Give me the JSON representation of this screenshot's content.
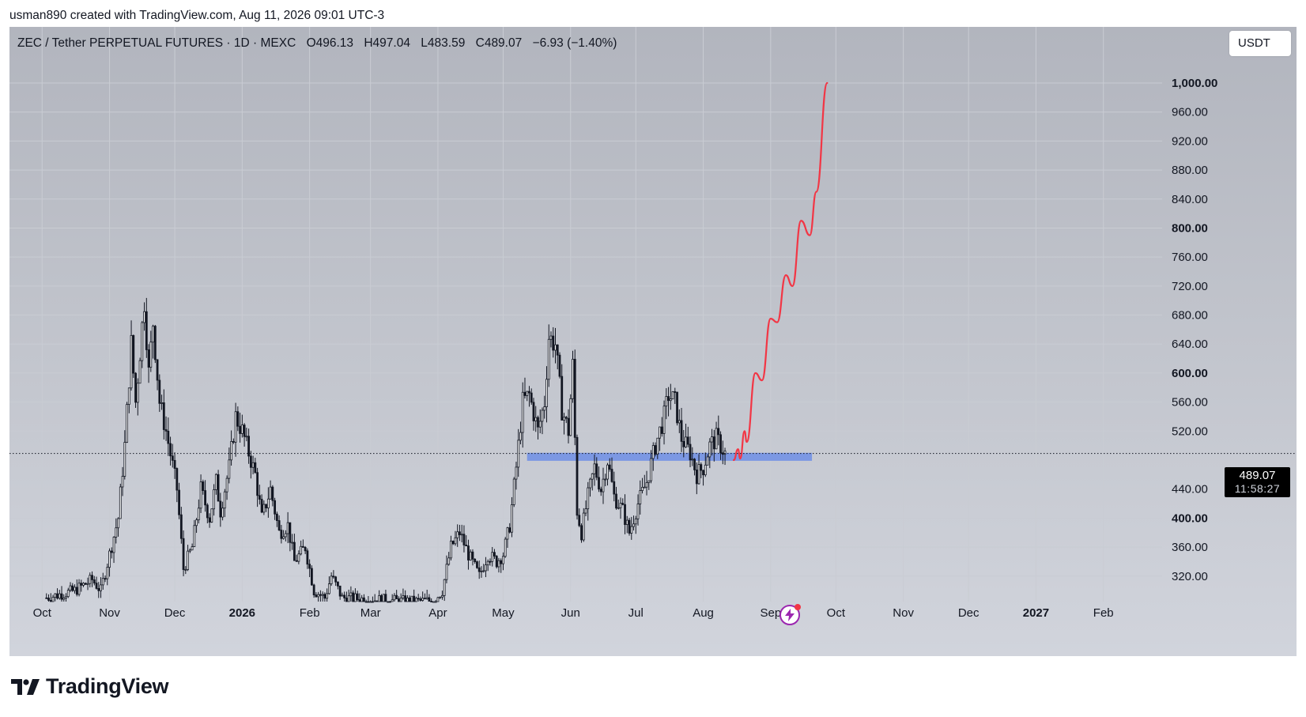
{
  "header": {
    "caption": "usman890 created with TradingView.com, Aug 11, 2026 09:01 UTC-3"
  },
  "legend": {
    "symbol": "ZEC / Tether PERPETUAL FUTURES · 1D · MEXC",
    "open": "O496.13",
    "high": "H497.04",
    "low": "L483.59",
    "close": "C489.07",
    "change": "−6.93 (−1.40%)"
  },
  "currency_button": "USDT",
  "price_tag": {
    "price": "489.07",
    "countdown": "11:58:27"
  },
  "brand": {
    "name": "TradingView",
    "logo_icon": "tradingview-logo-icon"
  },
  "colors": {
    "candle": "#131722",
    "projection": "#f23645",
    "support_zone": "#6f8fe6",
    "grid": "#c9ccd3"
  },
  "chart_data": {
    "type": "candlestick",
    "x_axis": {
      "labels": [
        "Oct",
        "Nov",
        "Dec",
        "2026",
        "Feb",
        "Mar",
        "Apr",
        "May",
        "Jun",
        "Jul",
        "Aug",
        "Sep",
        "Oct",
        "Nov",
        "Dec",
        "2027",
        "Feb"
      ],
      "bold_labels": [
        "2026",
        "2027"
      ]
    },
    "y_axis": {
      "unit": "USDT",
      "ticks": [
        1000,
        960,
        920,
        880,
        840,
        800,
        760,
        720,
        680,
        640,
        600,
        560,
        520,
        440,
        400,
        360,
        320
      ],
      "tick_labels": [
        "1,000.00",
        "960.00",
        "920.00",
        "880.00",
        "840.00",
        "800.00",
        "760.00",
        "720.00",
        "680.00",
        "640.00",
        "600.00",
        "560.00",
        "520.00",
        "440.00",
        "400.00",
        "360.00",
        "320.00"
      ],
      "bold_ticks": [
        1000,
        800,
        600,
        400
      ],
      "range": [
        285,
        1040
      ]
    },
    "current_price": 489.07,
    "support_zone": {
      "low": 479,
      "high": 490,
      "x_start": "2026-05-12",
      "x_end": "2026-09-20"
    },
    "projection": [
      [
        "2026-08-15",
        480
      ],
      [
        "2026-08-17",
        495
      ],
      [
        "2026-08-18",
        482
      ],
      [
        "2026-08-20",
        520
      ],
      [
        "2026-08-21",
        505
      ],
      [
        "2026-08-25",
        600
      ],
      [
        "2026-08-28",
        590
      ],
      [
        "2026-09-01",
        675
      ],
      [
        "2026-09-04",
        670
      ],
      [
        "2026-09-08",
        735
      ],
      [
        "2026-09-11",
        720
      ],
      [
        "2026-09-15",
        810
      ],
      [
        "2026-09-19",
        790
      ],
      [
        "2026-09-22",
        850
      ],
      [
        "2026-09-27",
        1000
      ]
    ],
    "price_path": [
      [
        "2025-10-03",
        290
      ],
      [
        "2025-10-16",
        300
      ],
      [
        "2025-10-24",
        315
      ],
      [
        "2025-10-28",
        300
      ],
      [
        "2025-11-01",
        350
      ],
      [
        "2025-11-05",
        400
      ],
      [
        "2025-11-08",
        500
      ],
      [
        "2025-11-11",
        640
      ],
      [
        "2025-11-13",
        560
      ],
      [
        "2025-11-17",
        700
      ],
      [
        "2025-11-19",
        600
      ],
      [
        "2025-11-21",
        670
      ],
      [
        "2025-11-24",
        560
      ],
      [
        "2025-11-27",
        520
      ],
      [
        "2025-12-02",
        440
      ],
      [
        "2025-12-05",
        330
      ],
      [
        "2025-12-09",
        360
      ],
      [
        "2025-12-13",
        440
      ],
      [
        "2025-12-17",
        400
      ],
      [
        "2025-12-20",
        450
      ],
      [
        "2025-12-22",
        410
      ],
      [
        "2025-12-26",
        470
      ],
      [
        "2025-12-29",
        540
      ],
      [
        "2026-01-01",
        520
      ],
      [
        "2026-01-04",
        490
      ],
      [
        "2026-01-07",
        460
      ],
      [
        "2026-01-10",
        400
      ],
      [
        "2026-01-14",
        440
      ],
      [
        "2026-01-18",
        380
      ],
      [
        "2026-01-22",
        390
      ],
      [
        "2026-01-25",
        340
      ],
      [
        "2026-01-30",
        360
      ],
      [
        "2026-02-03",
        300
      ],
      [
        "2026-02-08",
        290
      ],
      [
        "2026-02-11",
        320
      ],
      [
        "2026-02-16",
        290
      ],
      [
        "2026-03-19",
        285
      ],
      [
        "2026-03-30",
        286
      ],
      [
        "2026-04-03",
        300
      ],
      [
        "2026-04-07",
        360
      ],
      [
        "2026-04-11",
        380
      ],
      [
        "2026-04-15",
        350
      ],
      [
        "2026-04-20",
        320
      ],
      [
        "2026-04-24",
        350
      ],
      [
        "2026-04-28",
        340
      ],
      [
        "2026-05-01",
        350
      ],
      [
        "2026-05-04",
        390
      ],
      [
        "2026-05-07",
        470
      ],
      [
        "2026-05-10",
        560
      ],
      [
        "2026-05-13",
        570
      ],
      [
        "2026-05-17",
        520
      ],
      [
        "2026-05-20",
        560
      ],
      [
        "2026-05-22",
        650
      ],
      [
        "2026-05-25",
        640
      ],
      [
        "2026-05-28",
        550
      ],
      [
        "2026-05-31",
        520
      ],
      [
        "2026-06-02",
        610
      ],
      [
        "2026-06-04",
        410
      ],
      [
        "2026-06-06",
        380
      ],
      [
        "2026-06-09",
        430
      ],
      [
        "2026-06-12",
        470
      ],
      [
        "2026-06-15",
        440
      ],
      [
        "2026-06-18",
        480
      ],
      [
        "2026-06-21",
        430
      ],
      [
        "2026-06-25",
        410
      ],
      [
        "2026-06-28",
        380
      ],
      [
        "2026-07-02",
        420
      ],
      [
        "2026-07-06",
        450
      ],
      [
        "2026-07-10",
        500
      ],
      [
        "2026-07-14",
        540
      ],
      [
        "2026-07-16",
        570
      ],
      [
        "2026-07-19",
        560
      ],
      [
        "2026-07-22",
        510
      ],
      [
        "2026-07-26",
        490
      ],
      [
        "2026-07-29",
        460
      ],
      [
        "2026-08-01",
        470
      ],
      [
        "2026-08-04",
        500
      ],
      [
        "2026-08-07",
        510
      ],
      [
        "2026-08-09",
        500
      ],
      [
        "2026-08-11",
        489
      ]
    ],
    "layout": {
      "x_start": "2025-09-16",
      "x_end": "2027-02-28"
    }
  }
}
